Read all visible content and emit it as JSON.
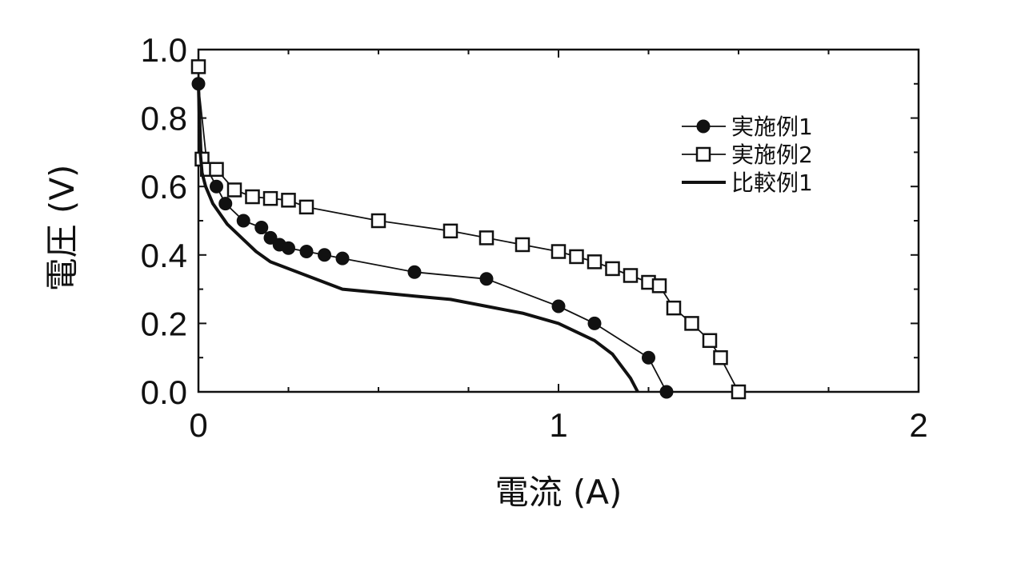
{
  "chart_data": {
    "type": "line",
    "xlabel": "電流 (A)",
    "ylabel": "電圧 (V)",
    "xlim": [
      0,
      2
    ],
    "ylim": [
      0,
      1.0
    ],
    "x_ticks": [
      "0",
      "1",
      "2"
    ],
    "y_ticks": [
      "0.0",
      "0.2",
      "0.4",
      "0.6",
      "0.8",
      "1.0"
    ],
    "grid": false,
    "legend_position": "right",
    "series": [
      {
        "name": "実施例1",
        "marker": "filled-circle",
        "color": "#111111",
        "x": [
          0,
          0.025,
          0.05,
          0.075,
          0.125,
          0.175,
          0.2,
          0.225,
          0.25,
          0.3,
          0.35,
          0.4,
          0.6,
          0.8,
          1.0,
          1.1,
          1.25,
          1.3
        ],
        "y": [
          0.9,
          0.65,
          0.6,
          0.55,
          0.5,
          0.48,
          0.45,
          0.43,
          0.42,
          0.41,
          0.4,
          0.39,
          0.35,
          0.33,
          0.25,
          0.2,
          0.1,
          0.0
        ]
      },
      {
        "name": "実施例2",
        "marker": "open-square",
        "color": "#111111",
        "x": [
          0,
          0.01,
          0.025,
          0.05,
          0.1,
          0.15,
          0.2,
          0.25,
          0.3,
          0.5,
          0.7,
          0.8,
          0.9,
          1.0,
          1.05,
          1.1,
          1.15,
          1.2,
          1.25,
          1.28,
          1.32,
          1.37,
          1.42,
          1.45,
          1.5
        ],
        "y": [
          0.95,
          0.68,
          0.65,
          0.65,
          0.59,
          0.57,
          0.565,
          0.56,
          0.54,
          0.5,
          0.47,
          0.45,
          0.43,
          0.41,
          0.395,
          0.38,
          0.36,
          0.34,
          0.32,
          0.31,
          0.245,
          0.2,
          0.15,
          0.1,
          0.0
        ]
      },
      {
        "name": "比較例1",
        "marker": "none",
        "color": "#111111",
        "x": [
          0,
          0.005,
          0.01,
          0.02,
          0.04,
          0.08,
          0.12,
          0.16,
          0.2,
          0.3,
          0.4,
          0.5,
          0.6,
          0.7,
          0.8,
          0.9,
          1.0,
          1.1,
          1.15,
          1.2,
          1.22
        ],
        "y": [
          0.9,
          0.7,
          0.64,
          0.6,
          0.55,
          0.49,
          0.45,
          0.41,
          0.38,
          0.34,
          0.3,
          0.29,
          0.28,
          0.27,
          0.25,
          0.23,
          0.2,
          0.15,
          0.11,
          0.04,
          0.0
        ]
      }
    ]
  }
}
